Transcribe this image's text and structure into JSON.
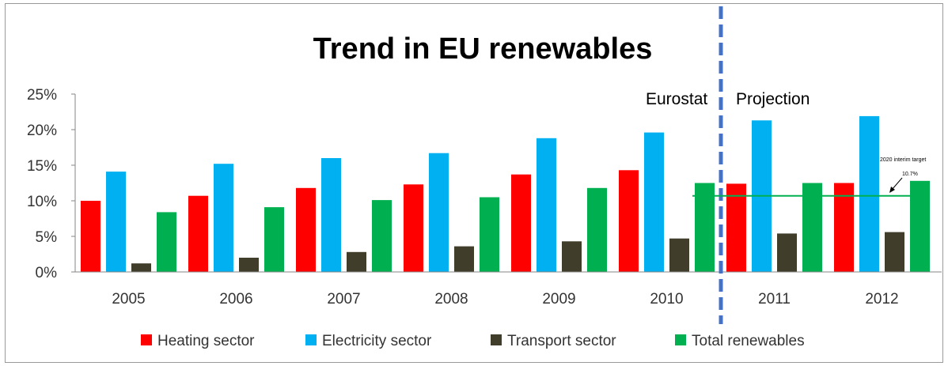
{
  "chart_data": {
    "type": "bar",
    "title": "Trend in EU renewables",
    "categories": [
      "2005",
      "2006",
      "2007",
      "2008",
      "2009",
      "2010",
      "2011",
      "2012"
    ],
    "ylim": [
      0,
      25
    ],
    "yticks": [
      "0%",
      "5%",
      "10%",
      "15%",
      "20%",
      "25%"
    ],
    "grid": false,
    "legend_position": "bottom",
    "series": [
      {
        "name": "Heating sector",
        "color": "#ff0000",
        "values": [
          10.0,
          10.7,
          11.8,
          12.3,
          13.7,
          14.3,
          12.4,
          12.5
        ]
      },
      {
        "name": "Electricity sector",
        "color": "#00b0f0",
        "values": [
          14.1,
          15.2,
          16.0,
          16.7,
          18.8,
          19.6,
          21.3,
          21.9
        ]
      },
      {
        "name": "Transport sector",
        "color": "#403d2b",
        "values": [
          1.2,
          2.0,
          2.8,
          3.6,
          4.3,
          4.7,
          5.4,
          5.6
        ]
      },
      {
        "name": "Total renewables",
        "color": "#00b050",
        "values": [
          8.4,
          9.1,
          10.1,
          10.5,
          11.8,
          12.5,
          12.5,
          12.8
        ]
      }
    ],
    "annotations": {
      "left_label": "Eurostat",
      "right_label": "Projection",
      "divider_color": "#4472c4",
      "target_line_value": 10.7,
      "target_line_color": "#00b050",
      "target_text_line1": "2020 interim target",
      "target_text_line2": "10.7%"
    }
  }
}
